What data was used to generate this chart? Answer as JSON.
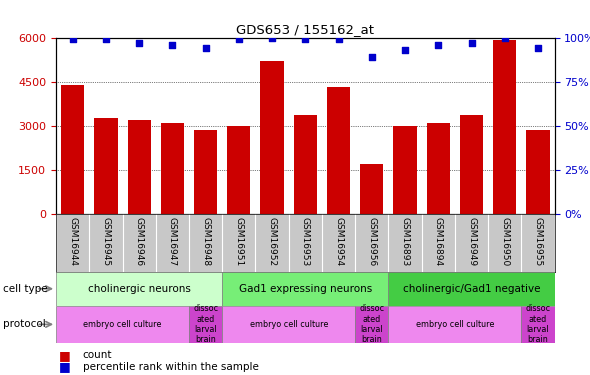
{
  "title": "GDS653 / 155162_at",
  "samples": [
    "GSM16944",
    "GSM16945",
    "GSM16946",
    "GSM16947",
    "GSM16948",
    "GSM16951",
    "GSM16952",
    "GSM16953",
    "GSM16954",
    "GSM16956",
    "GSM16893",
    "GSM16894",
    "GSM16949",
    "GSM16950",
    "GSM16955"
  ],
  "counts": [
    4400,
    3250,
    3200,
    3100,
    2850,
    3000,
    5200,
    3350,
    4300,
    1700,
    3000,
    3100,
    3350,
    5900,
    2850
  ],
  "percentiles": [
    99,
    99,
    97,
    96,
    94,
    99,
    100,
    99,
    99,
    89,
    93,
    96,
    97,
    100,
    94
  ],
  "bar_color": "#cc0000",
  "dot_color": "#0000cc",
  "ylim_left": [
    0,
    6000
  ],
  "ylim_right": [
    0,
    100
  ],
  "yticks_left": [
    0,
    1500,
    3000,
    4500,
    6000
  ],
  "yticks_right": [
    0,
    25,
    50,
    75,
    100
  ],
  "cell_type_groups": [
    {
      "label": "cholinergic neurons",
      "start": 0,
      "end": 5,
      "color": "#ccffcc"
    },
    {
      "label": "Gad1 expressing neurons",
      "start": 5,
      "end": 10,
      "color": "#66ee66"
    },
    {
      "label": "cholinergic/Gad1 negative",
      "start": 10,
      "end": 15,
      "color": "#44cc44"
    }
  ],
  "protocol_groups": [
    {
      "label": "embryo cell culture",
      "start": 0,
      "end": 4,
      "color": "#ee88ee"
    },
    {
      "label": "dissoc\nated\nlarval\nbrain",
      "start": 4,
      "end": 5,
      "color": "#cc44cc"
    },
    {
      "label": "embryo cell culture",
      "start": 5,
      "end": 9,
      "color": "#ee88ee"
    },
    {
      "label": "dissoc\nated\nlarval\nbrain",
      "start": 9,
      "end": 10,
      "color": "#cc44cc"
    },
    {
      "label": "embryo cell culture",
      "start": 10,
      "end": 14,
      "color": "#ee88ee"
    },
    {
      "label": "dissoc\nated\nlarval\nbrain",
      "start": 14,
      "end": 15,
      "color": "#cc44cc"
    }
  ],
  "cell_type_label": "cell type",
  "protocol_label": "protocol",
  "legend_count_label": "count",
  "legend_pct_label": "percentile rank within the sample",
  "bar_color_hex": "#cc0000",
  "dot_color_hex": "#0000cc",
  "tick_color_left": "#cc0000",
  "tick_color_right": "#0000cc",
  "sample_bg": "#c8c8c8",
  "plot_bg": "#ffffff"
}
